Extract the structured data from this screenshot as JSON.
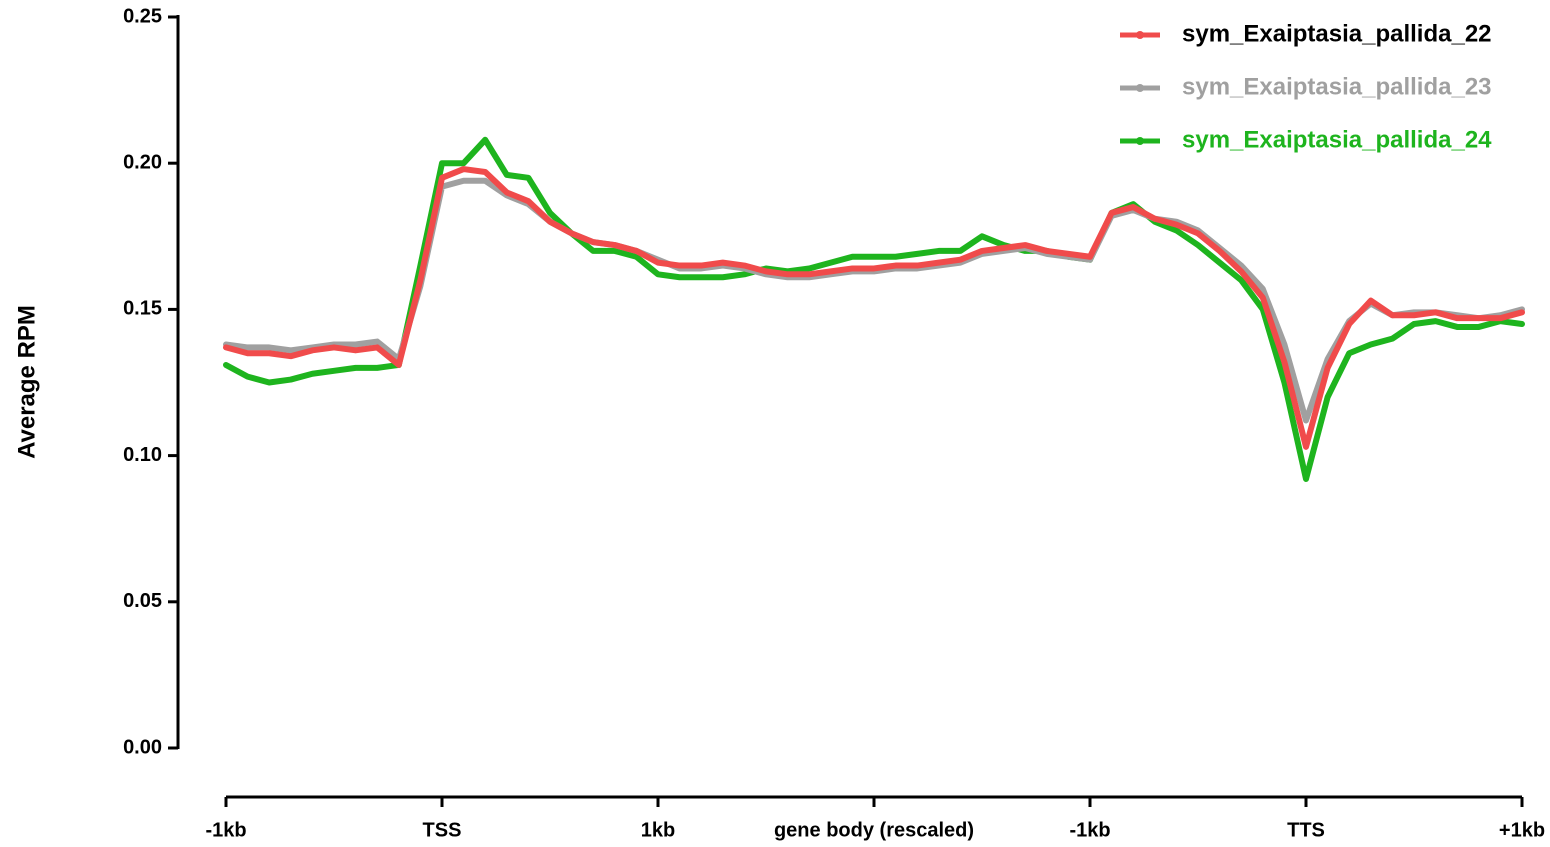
{
  "chart_data": {
    "type": "line",
    "y_label": "Average RPM",
    "x": [
      0,
      0.1,
      0.2,
      0.3,
      0.4,
      0.5,
      0.6,
      0.7,
      0.8,
      0.9,
      1,
      1.1,
      1.2,
      1.3,
      1.4,
      1.5,
      1.6,
      1.7,
      1.8,
      1.9,
      2,
      2.1,
      2.2,
      2.3,
      2.4,
      2.5,
      2.6,
      2.7,
      2.8,
      2.9,
      3,
      3.1,
      3.2,
      3.3,
      3.4,
      3.5,
      3.6,
      3.7,
      3.8,
      3.9,
      4,
      4.1,
      4.2,
      4.3,
      4.4,
      4.5,
      4.6,
      4.7,
      4.8,
      4.9,
      5,
      5.1,
      5.2,
      5.3,
      5.4,
      5.5,
      5.6,
      5.7,
      5.8,
      5.9,
      6
    ],
    "xlim": [
      0,
      6
    ],
    "xticks": [
      {
        "value": 0,
        "label": "-1kb"
      },
      {
        "value": 1,
        "label": "TSS"
      },
      {
        "value": 2,
        "label": "1kb"
      },
      {
        "value": 3,
        "label": "gene body (rescaled)"
      },
      {
        "value": 4,
        "label": "-1kb"
      },
      {
        "value": 5,
        "label": "TTS"
      },
      {
        "value": 6,
        "label": "+1kb"
      }
    ],
    "ylim": [
      0,
      0.25
    ],
    "yticks": [
      {
        "value": 0,
        "label": "0.00"
      },
      {
        "value": 0.05,
        "label": "0.05"
      },
      {
        "value": 0.1,
        "label": "0.10"
      },
      {
        "value": 0.15,
        "label": "0.15"
      },
      {
        "value": 0.2,
        "label": "0.20"
      },
      {
        "value": 0.25,
        "label": "0.25"
      }
    ],
    "legend": "top-right",
    "series": [
      {
        "name": "sym_Exaiptasia_pallida_22",
        "color": "#f04b4b",
        "label_color": "#000000",
        "values": [
          0.137,
          0.135,
          0.135,
          0.134,
          0.136,
          0.137,
          0.136,
          0.137,
          0.131,
          0.16,
          0.195,
          0.198,
          0.197,
          0.19,
          0.187,
          0.18,
          0.176,
          0.173,
          0.172,
          0.17,
          0.166,
          0.165,
          0.165,
          0.166,
          0.165,
          0.163,
          0.162,
          0.162,
          0.163,
          0.164,
          0.164,
          0.165,
          0.165,
          0.166,
          0.167,
          0.17,
          0.171,
          0.172,
          0.17,
          0.169,
          0.168,
          0.183,
          0.185,
          0.181,
          0.179,
          0.176,
          0.17,
          0.163,
          0.154,
          0.132,
          0.103,
          0.13,
          0.145,
          0.153,
          0.148,
          0.148,
          0.149,
          0.147,
          0.147,
          0.147,
          0.149
        ]
      },
      {
        "name": "sym_Exaiptasia_pallida_23",
        "color": "#a0a0a0",
        "label_color": "#a0a0a0",
        "values": [
          0.138,
          0.137,
          0.137,
          0.136,
          0.137,
          0.138,
          0.138,
          0.139,
          0.133,
          0.158,
          0.192,
          0.194,
          0.194,
          0.189,
          0.186,
          0.18,
          0.176,
          0.173,
          0.172,
          0.17,
          0.167,
          0.164,
          0.164,
          0.165,
          0.164,
          0.162,
          0.161,
          0.161,
          0.162,
          0.163,
          0.163,
          0.164,
          0.164,
          0.165,
          0.166,
          0.169,
          0.17,
          0.171,
          0.169,
          0.168,
          0.167,
          0.182,
          0.184,
          0.181,
          0.18,
          0.177,
          0.171,
          0.165,
          0.157,
          0.138,
          0.112,
          0.133,
          0.146,
          0.152,
          0.148,
          0.149,
          0.149,
          0.148,
          0.147,
          0.148,
          0.15
        ]
      },
      {
        "name": "sym_Exaiptasia_pallida_24",
        "color": "#1eb41e",
        "label_color": "#1eb41e",
        "values": [
          0.131,
          0.127,
          0.125,
          0.126,
          0.128,
          0.129,
          0.13,
          0.13,
          0.131,
          0.165,
          0.2,
          0.2,
          0.208,
          0.196,
          0.195,
          0.183,
          0.176,
          0.17,
          0.17,
          0.168,
          0.162,
          0.161,
          0.161,
          0.161,
          0.162,
          0.164,
          0.163,
          0.164,
          0.166,
          0.168,
          0.168,
          0.168,
          0.169,
          0.17,
          0.17,
          0.175,
          0.172,
          0.17,
          0.17,
          0.168,
          0.167,
          0.183,
          0.186,
          0.18,
          0.177,
          0.172,
          0.166,
          0.16,
          0.15,
          0.125,
          0.092,
          0.12,
          0.135,
          0.138,
          0.14,
          0.145,
          0.146,
          0.144,
          0.144,
          0.146,
          0.145
        ]
      }
    ]
  }
}
